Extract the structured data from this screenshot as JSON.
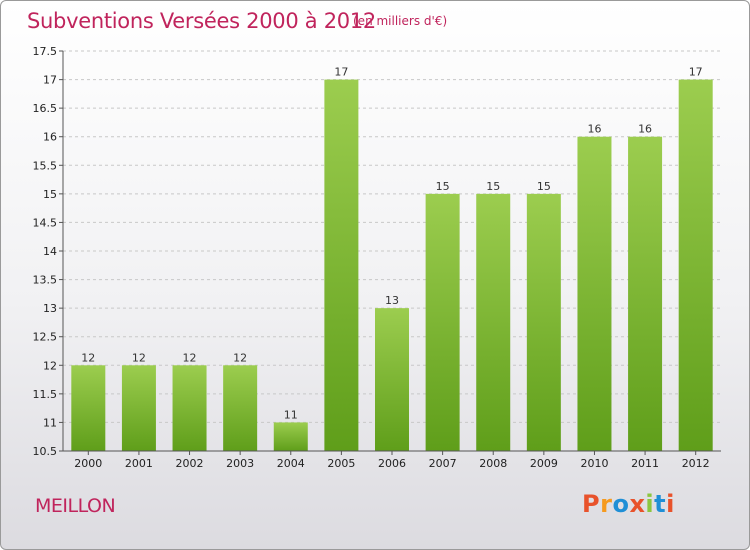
{
  "header": {
    "title": "Subventions Versées 2000 à 2012",
    "subtitle": "(en milliers d'€)"
  },
  "footer": {
    "commune": "MEILLON",
    "logo_text": "Proxiti",
    "logo_colors": [
      "#e8522b",
      "#f59a1f",
      "#1f8fd6",
      "#e8522b",
      "#8cc63f",
      "#1f8fd6",
      "#e8522b"
    ]
  },
  "colors": {
    "title": "#c0245c",
    "bar_top": "#9ccd4f",
    "bar_bottom": "#5f9e1a",
    "grid": "#c8c8c8"
  },
  "chart_data": {
    "type": "bar",
    "title": "Subventions Versées 2000 à 2012",
    "subtitle": "(en milliers d'€)",
    "categories": [
      "2000",
      "2001",
      "2002",
      "2003",
      "2004",
      "2005",
      "2006",
      "2007",
      "2008",
      "2009",
      "2010",
      "2011",
      "2012"
    ],
    "values": [
      12,
      12,
      12,
      12,
      11,
      17,
      13,
      15,
      15,
      15,
      16,
      16,
      17
    ],
    "ylim": [
      10.5,
      17.5
    ],
    "yticks": [
      "10.5",
      "11",
      "11.5",
      "12",
      "12.5",
      "13",
      "13.5",
      "14",
      "14.5",
      "15",
      "15.5",
      "16",
      "16.5",
      "17",
      "17.5"
    ],
    "grid": "horizontal dashed",
    "xlabel": "",
    "ylabel": ""
  }
}
